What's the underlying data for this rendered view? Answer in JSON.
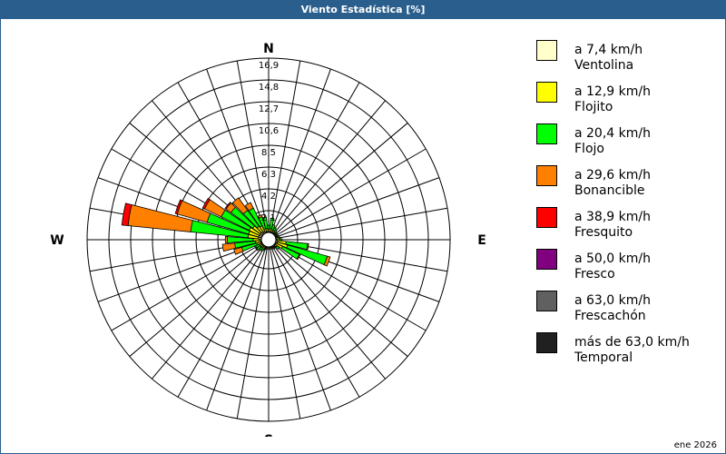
{
  "window": {
    "title": "Viento Estadística [%]"
  },
  "chart_data": {
    "type": "wind-rose",
    "title": "Viento Estadística [%]",
    "unit": "%",
    "radial_ticks": [
      "2,1",
      "4,2",
      "6,3",
      "8,5",
      "10,6",
      "12,7",
      "14,8",
      "16,9"
    ],
    "radial_max": 16.9,
    "compass": {
      "N": "N",
      "E": "E",
      "S": "S",
      "W": "W"
    },
    "bins": [
      {
        "speed": "a 7,4 km/h",
        "name": "Ventolina",
        "color": "#ffffcc"
      },
      {
        "speed": "a 12,9 km/h",
        "name": "Flojito",
        "color": "#ffff00"
      },
      {
        "speed": "a 20,4 km/h",
        "name": "Flojo",
        "color": "#00ff00"
      },
      {
        "speed": "a 29,6 km/h",
        "name": "Bonancible",
        "color": "#ff8000"
      },
      {
        "speed": "a 38,9 km/h",
        "name": "Fresquito",
        "color": "#ff0000"
      },
      {
        "speed": "a 50,0 km/h",
        "name": "Fresco",
        "color": "#800080"
      },
      {
        "speed": "a 63,0 km/h",
        "name": "Frescachón",
        "color": "#606060"
      },
      {
        "speed": "más de 63,0 km/h",
        "name": "Temporal",
        "color": "#202020"
      }
    ],
    "directions": [
      {
        "dir": 0,
        "values": [
          0.1,
          0.2,
          0.4,
          0,
          0,
          0,
          0,
          0
        ]
      },
      {
        "dir": 10,
        "values": [
          0.1,
          0.3,
          1.0,
          0,
          0,
          0,
          0,
          0
        ]
      },
      {
        "dir": 20,
        "values": [
          0.1,
          0.2,
          0.5,
          0,
          0,
          0,
          0,
          0
        ]
      },
      {
        "dir": 30,
        "values": [
          0.1,
          0.2,
          0.3,
          0,
          0,
          0,
          0,
          0
        ]
      },
      {
        "dir": 40,
        "values": [
          0.1,
          0.1,
          0.2,
          0,
          0,
          0,
          0,
          0
        ]
      },
      {
        "dir": 50,
        "values": [
          0.1,
          0.1,
          0.1,
          0,
          0,
          0,
          0,
          0
        ]
      },
      {
        "dir": 60,
        "values": [
          0.1,
          0.1,
          0.1,
          0,
          0,
          0,
          0,
          0
        ]
      },
      {
        "dir": 70,
        "values": [
          0.1,
          0.1,
          0.1,
          0,
          0,
          0,
          0,
          0
        ]
      },
      {
        "dir": 80,
        "values": [
          0.1,
          0.2,
          0.1,
          0,
          0,
          0,
          0,
          0
        ]
      },
      {
        "dir": 90,
        "values": [
          0.1,
          0.3,
          0.2,
          0,
          0,
          0,
          0,
          0
        ]
      },
      {
        "dir": 100,
        "values": [
          0.2,
          0.8,
          2.1,
          0.1,
          0,
          0,
          0,
          0
        ]
      },
      {
        "dir": 110,
        "values": [
          0.2,
          1.0,
          4.0,
          0.3,
          0,
          0,
          0,
          0
        ]
      },
      {
        "dir": 120,
        "values": [
          0.1,
          0.7,
          1.8,
          0.1,
          0,
          0,
          0,
          0
        ]
      },
      {
        "dir": 130,
        "values": [
          0.1,
          0.2,
          0.3,
          0,
          0,
          0,
          0,
          0
        ]
      },
      {
        "dir": 140,
        "values": [
          0.1,
          0.1,
          0.1,
          0,
          0,
          0,
          0,
          0
        ]
      },
      {
        "dir": 150,
        "values": [
          0.1,
          0.1,
          0.1,
          0,
          0,
          0,
          0,
          0
        ]
      },
      {
        "dir": 160,
        "values": [
          0.1,
          0.1,
          0,
          0,
          0,
          0,
          0,
          0
        ]
      },
      {
        "dir": 170,
        "values": [
          0.1,
          0.1,
          0,
          0,
          0,
          0,
          0,
          0
        ]
      },
      {
        "dir": 180,
        "values": [
          0.1,
          0.1,
          0,
          0,
          0,
          0,
          0,
          0
        ]
      },
      {
        "dir": 190,
        "values": [
          0.1,
          0.1,
          0,
          0,
          0,
          0,
          0,
          0
        ]
      },
      {
        "dir": 200,
        "values": [
          0.1,
          0.1,
          0.1,
          0,
          0,
          0,
          0,
          0
        ]
      },
      {
        "dir": 210,
        "values": [
          0.1,
          0.2,
          0.2,
          0,
          0,
          0,
          0,
          0
        ]
      },
      {
        "dir": 220,
        "values": [
          0.1,
          0.2,
          0.3,
          0,
          0,
          0,
          0,
          0
        ]
      },
      {
        "dir": 230,
        "values": [
          0.1,
          0.2,
          0.4,
          0.1,
          0,
          0,
          0,
          0
        ]
      },
      {
        "dir": 240,
        "values": [
          0.1,
          0.2,
          0.4,
          0.1,
          0,
          0,
          0,
          0
        ]
      },
      {
        "dir": 250,
        "values": [
          0.1,
          0.4,
          1.5,
          0.8,
          0,
          0,
          0,
          0
        ]
      },
      {
        "dir": 260,
        "values": [
          0.1,
          0.5,
          2.0,
          1.2,
          0,
          0,
          0,
          0
        ]
      },
      {
        "dir": 270,
        "values": [
          0.2,
          0.6,
          2.5,
          0.2,
          0,
          0,
          0,
          0
        ]
      },
      {
        "dir": 280,
        "values": [
          0.3,
          1.0,
          5.6,
          6.1,
          0.6,
          0,
          0,
          0
        ]
      },
      {
        "dir": 290,
        "values": [
          0.3,
          1.0,
          4.2,
          3.0,
          0.2,
          0,
          0,
          0
        ]
      },
      {
        "dir": 300,
        "values": [
          0.3,
          1.1,
          3.0,
          1.8,
          0.2,
          0,
          0,
          0
        ]
      },
      {
        "dir": 310,
        "values": [
          0.3,
          0.9,
          2.6,
          0.6,
          0.1,
          0,
          0,
          0
        ]
      },
      {
        "dir": 320,
        "values": [
          0.2,
          0.7,
          1.9,
          1.5,
          0,
          0,
          0,
          0
        ]
      },
      {
        "dir": 330,
        "values": [
          0.2,
          0.6,
          1.9,
          0.6,
          0,
          0,
          0,
          0
        ]
      },
      {
        "dir": 340,
        "values": [
          0.1,
          0.3,
          1.2,
          0.2,
          0,
          0,
          0,
          0
        ]
      },
      {
        "dir": 350,
        "values": [
          0.1,
          0.3,
          1.1,
          0,
          0,
          0,
          0,
          0
        ]
      }
    ]
  },
  "footer": {
    "date": "ene 2026"
  }
}
